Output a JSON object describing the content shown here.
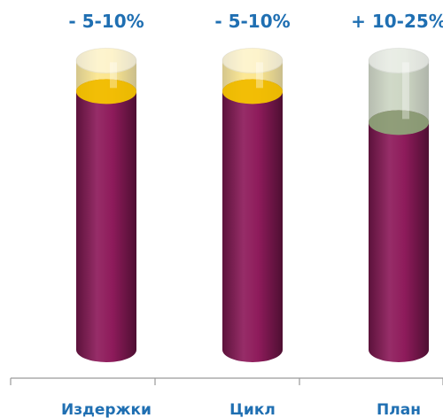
{
  "chart_data": {
    "type": "bar",
    "style": "3d-cylinder",
    "categories": [
      "Издержки",
      "Цикл",
      "План"
    ],
    "series": [
      {
        "values": [
          100,
          100,
          88
        ]
      }
    ],
    "change_targets": [
      112,
      112,
      112
    ],
    "change_labels": [
      "- 5-10%",
      "- 5-10%",
      "+ 10-25%"
    ],
    "change_colors": [
      "#f7c600",
      "#f7c600",
      "#8fa47a"
    ],
    "ylim": [
      0,
      120
    ],
    "grid": false,
    "legend": "none"
  },
  "colors": {
    "bar": "#8e1b5b",
    "label_text": "#1f6fb2",
    "axis": "#9a9a9a"
  }
}
